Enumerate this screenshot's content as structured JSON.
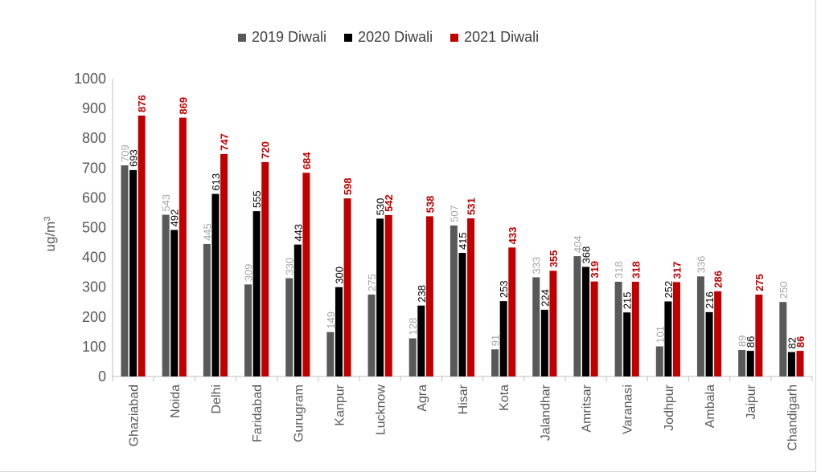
{
  "chart_data": {
    "type": "bar",
    "title": "",
    "xlabel": "",
    "ylabel": "ug/m",
    "ylabel_superscript": "3",
    "ylim": [
      0,
      1000
    ],
    "yticks": [
      0,
      100,
      200,
      300,
      400,
      500,
      600,
      700,
      800,
      900,
      1000
    ],
    "grid": false,
    "legend_position": "top",
    "categories": [
      "Ghaziabad",
      "Noida",
      "Delhi",
      "Faridabad",
      "Gurugram",
      "Kanpur",
      "Lucknow",
      "Agra",
      "Hisar",
      "Kota",
      "Jalandhar",
      "Amritsar",
      "Varanasi",
      "Jodhpur",
      "Ambala",
      "Jaipur",
      "Chandigarh"
    ],
    "series": [
      {
        "name": "2019 Diwali",
        "color": "#595959",
        "label_color": "#a6a6a6",
        "values": [
          709,
          543,
          445,
          309,
          330,
          149,
          275,
          128,
          507,
          91,
          333,
          404,
          318,
          101,
          336,
          89,
          250
        ]
      },
      {
        "name": "2020 Diwali",
        "color": "#000000",
        "label_color": "#000000",
        "values": [
          693,
          492,
          613,
          555,
          443,
          300,
          530,
          238,
          415,
          253,
          224,
          368,
          215,
          252,
          216,
          86,
          82
        ]
      },
      {
        "name": "2021 Diwali",
        "color": "#c00000",
        "label_color": "#c00000",
        "values": [
          876,
          869,
          747,
          720,
          684,
          598,
          542,
          538,
          531,
          433,
          355,
          319,
          318,
          317,
          286,
          275,
          86
        ]
      }
    ]
  }
}
